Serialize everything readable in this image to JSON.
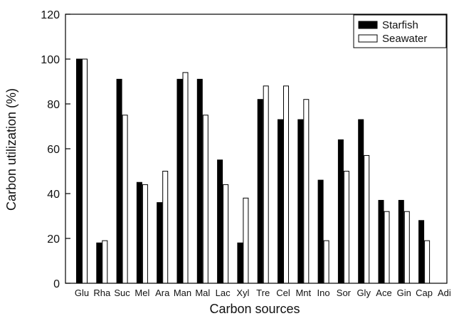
{
  "chart_data": {
    "type": "bar",
    "xlabel": "Carbon sources",
    "ylabel": "Carbon utilization (%)",
    "ylim": [
      0,
      120
    ],
    "yticks": [
      "0",
      "20",
      "40",
      "60",
      "80",
      "100",
      "120"
    ],
    "categories": [
      "Glu",
      "Rha",
      "Suc",
      "Mel",
      "Ara",
      "Man",
      "Mal",
      "Lac",
      "Xyl",
      "Tre",
      "Cel",
      "Mnt",
      "Ino",
      "Sor",
      "Gly",
      "Ace",
      "Gin",
      "Cap",
      "Adi"
    ],
    "series": [
      {
        "name": "Starfish",
        "color": "#000000",
        "values": [
          100,
          18,
          91,
          45,
          36,
          91,
          91,
          55,
          18,
          82,
          73,
          73,
          46,
          64,
          73,
          37,
          37,
          28,
          0
        ]
      },
      {
        "name": "Seawater",
        "color": "#ffffff",
        "values": [
          100,
          19,
          75,
          44,
          50,
          94,
          75,
          44,
          38,
          88,
          88,
          82,
          19,
          50,
          57,
          32,
          32,
          19,
          0
        ]
      }
    ],
    "legend_position": "top-right",
    "grid": false
  }
}
